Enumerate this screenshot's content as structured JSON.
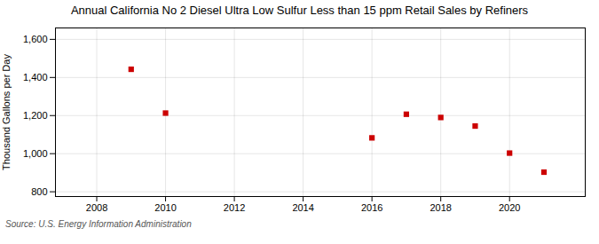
{
  "chart_data": {
    "type": "scatter",
    "title": "Annual California No 2 Diesel Ultra Low Sulfur Less than 15 ppm Retail Sales by Refiners",
    "ylabel": "Thousand Gallons per Day",
    "source": "Source: U.S. Energy Information Administration",
    "x": [
      2009,
      2010,
      2016,
      2017,
      2018,
      2019,
      2020,
      2021
    ],
    "values": [
      1443,
      1213,
      1083,
      1207,
      1190,
      1145,
      1003,
      903
    ],
    "color": "#cc0000",
    "marker": "square",
    "xlim": [
      2006.8,
      2022.2
    ],
    "xticks": [
      2008,
      2010,
      2012,
      2014,
      2016,
      2018,
      2020
    ],
    "ylim": [
      775,
      1660
    ],
    "yticks": [
      800,
      {
        "value": 1000,
        "label": "1,000"
      },
      {
        "value": 1200,
        "label": "1,200"
      },
      {
        "value": 1400,
        "label": "1,400"
      },
      {
        "value": 1600,
        "label": "1,600"
      }
    ],
    "grid": true
  }
}
